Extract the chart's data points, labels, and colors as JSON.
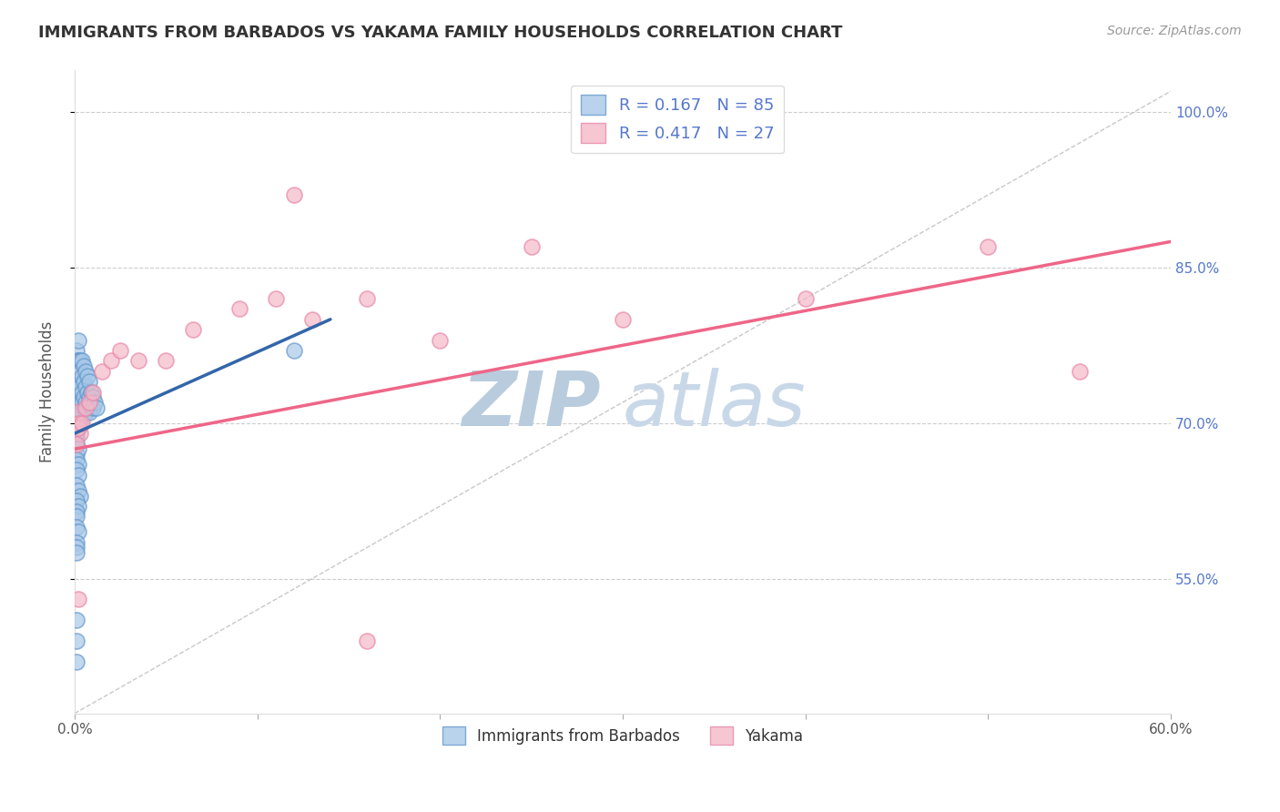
{
  "title": "IMMIGRANTS FROM BARBADOS VS YAKAMA FAMILY HOUSEHOLDS CORRELATION CHART",
  "source": "Source: ZipAtlas.com",
  "ylabel": "Family Households",
  "xlim": [
    0.0,
    0.6
  ],
  "ylim": [
    0.42,
    1.04
  ],
  "yticks_right": [
    0.55,
    0.7,
    0.85,
    1.0
  ],
  "ytick_labels_right": [
    "55.0%",
    "70.0%",
    "85.0%",
    "100.0%"
  ],
  "xticks": [
    0.0,
    0.1,
    0.2,
    0.3,
    0.4,
    0.5,
    0.6
  ],
  "xtick_labels": [
    "0.0%",
    "",
    "",
    "",
    "",
    "",
    "60.0%"
  ],
  "grid_yticks": [
    0.55,
    0.7,
    0.85,
    1.0
  ],
  "blue_color": "#a8c8e8",
  "pink_color": "#f4b8c8",
  "blue_edge_color": "#6699cc",
  "pink_edge_color": "#e888a8",
  "blue_line_color": "#3366aa",
  "pink_line_color": "#ee6688",
  "watermark_zip": "ZIP",
  "watermark_atlas": "atlas",
  "watermark_color": "#c8d8ea",
  "blue_trend_x": [
    0.0,
    0.14
  ],
  "blue_trend_y": [
    0.69,
    0.8
  ],
  "pink_trend_x": [
    0.0,
    0.6
  ],
  "pink_trend_y": [
    0.675,
    0.875
  ],
  "ref_line_x": [
    0.0,
    0.6
  ],
  "ref_line_y": [
    0.42,
    1.02
  ],
  "blue_scatter_x": [
    0.001,
    0.001,
    0.001,
    0.001,
    0.001,
    0.001,
    0.001,
    0.001,
    0.002,
    0.002,
    0.002,
    0.002,
    0.002,
    0.002,
    0.002,
    0.003,
    0.003,
    0.003,
    0.003,
    0.003,
    0.003,
    0.004,
    0.004,
    0.004,
    0.004,
    0.004,
    0.005,
    0.005,
    0.005,
    0.005,
    0.006,
    0.006,
    0.006,
    0.006,
    0.007,
    0.007,
    0.007,
    0.008,
    0.008,
    0.008,
    0.009,
    0.009,
    0.01,
    0.01,
    0.011,
    0.012,
    0.001,
    0.001,
    0.001,
    0.002,
    0.001,
    0.002,
    0.001,
    0.002,
    0.001,
    0.002,
    0.003,
    0.001,
    0.002,
    0.001,
    0.001,
    0.001,
    0.002,
    0.001,
    0.001,
    0.001,
    0.12,
    0.001,
    0.001,
    0.001
  ],
  "blue_scatter_y": [
    0.73,
    0.72,
    0.71,
    0.7,
    0.695,
    0.685,
    0.76,
    0.77,
    0.78,
    0.76,
    0.74,
    0.725,
    0.715,
    0.705,
    0.76,
    0.76,
    0.75,
    0.735,
    0.72,
    0.71,
    0.7,
    0.76,
    0.745,
    0.73,
    0.72,
    0.71,
    0.755,
    0.74,
    0.725,
    0.715,
    0.75,
    0.735,
    0.72,
    0.71,
    0.745,
    0.73,
    0.715,
    0.74,
    0.725,
    0.71,
    0.73,
    0.72,
    0.725,
    0.715,
    0.72,
    0.715,
    0.69,
    0.68,
    0.67,
    0.675,
    0.665,
    0.66,
    0.655,
    0.65,
    0.64,
    0.635,
    0.63,
    0.625,
    0.62,
    0.615,
    0.61,
    0.6,
    0.595,
    0.585,
    0.58,
    0.575,
    0.77,
    0.51,
    0.49,
    0.47
  ],
  "pink_scatter_x": [
    0.001,
    0.002,
    0.003,
    0.001,
    0.002,
    0.004,
    0.006,
    0.008,
    0.01,
    0.015,
    0.02,
    0.025,
    0.035,
    0.05,
    0.065,
    0.09,
    0.11,
    0.13,
    0.16,
    0.2,
    0.25,
    0.3,
    0.4,
    0.5,
    0.55,
    0.002,
    0.12,
    0.16
  ],
  "pink_scatter_y": [
    0.71,
    0.7,
    0.69,
    0.68,
    0.695,
    0.7,
    0.715,
    0.72,
    0.73,
    0.75,
    0.76,
    0.77,
    0.76,
    0.76,
    0.79,
    0.81,
    0.82,
    0.8,
    0.82,
    0.78,
    0.87,
    0.8,
    0.82,
    0.87,
    0.75,
    0.53,
    0.92,
    0.49
  ]
}
